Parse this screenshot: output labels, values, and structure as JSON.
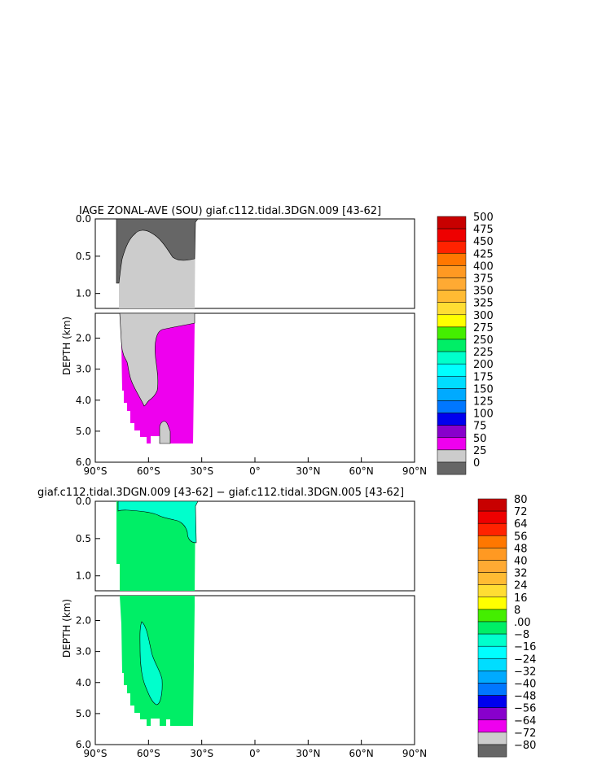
{
  "chart_data": [
    {
      "type": "heatmap",
      "title": "IAGE ZONAL-AVE (SOU) giaf.c112.tidal.3DGN.009 [43-62]",
      "ylabel": "DEPTH (km)",
      "x_ticks": [
        "90°S",
        "60°S",
        "30°S",
        "0°",
        "30°N",
        "60°N",
        "90°N"
      ],
      "upper_y_ticks": [
        "0.0",
        "0.5",
        "1.0"
      ],
      "lower_y_ticks": [
        "2.0",
        "3.0",
        "4.0",
        "5.0",
        "6.0"
      ],
      "xlim": [
        -90,
        90
      ],
      "ylim_upper_km": [
        0.0,
        1.2
      ],
      "ylim_lower_km": [
        1.2,
        6.0
      ],
      "colorbar_levels": [
        "500",
        "475",
        "450",
        "425",
        "400",
        "375",
        "350",
        "325",
        "300",
        "275",
        "250",
        "225",
        "200",
        "175",
        "150",
        "125",
        "100",
        "75",
        "50",
        "25",
        "0"
      ],
      "colorbar_colors": [
        "#c80000",
        "#ee0000",
        "#ff2200",
        "#ff7700",
        "#ff9922",
        "#ffaa33",
        "#ffbb33",
        "#ffdd33",
        "#ffff00",
        "#44ee00",
        "#00ee66",
        "#00ffcc",
        "#00ffff",
        "#00ddff",
        "#00aaff",
        "#0077ff",
        "#0000ee",
        "#8800cc",
        "#ee00ee",
        "#cccccc",
        "#666666"
      ]
    },
    {
      "type": "heatmap",
      "title": "giaf.c112.tidal.3DGN.009 [43-62] − giaf.c112.tidal.3DGN.005 [43-62]",
      "ylabel": "DEPTH (km)",
      "x_ticks": [
        "90°S",
        "60°S",
        "30°S",
        "0°",
        "30°N",
        "60°N",
        "90°N"
      ],
      "upper_y_ticks": [
        "0.0",
        "0.5",
        "1.0"
      ],
      "lower_y_ticks": [
        "2.0",
        "3.0",
        "4.0",
        "5.0",
        "6.0"
      ],
      "xlim": [
        -90,
        90
      ],
      "ylim_upper_km": [
        0.0,
        1.2
      ],
      "ylim_lower_km": [
        1.2,
        6.0
      ],
      "colorbar_levels": [
        "80",
        "72",
        "64",
        "56",
        "48",
        "40",
        "32",
        "24",
        "16",
        "8",
        ".00",
        "−8",
        "−16",
        "−24",
        "−32",
        "−40",
        "−48",
        "−56",
        "−64",
        "−72",
        "−80"
      ],
      "colorbar_colors": [
        "#c80000",
        "#ee0000",
        "#ff2200",
        "#ff7700",
        "#ff9922",
        "#ffaa33",
        "#ffbb33",
        "#ffdd33",
        "#ffff00",
        "#44ee00",
        "#00ee66",
        "#00ffcc",
        "#00ffff",
        "#00ddff",
        "#00aaff",
        "#0077ff",
        "#0000ee",
        "#8800cc",
        "#ee00ee",
        "#cccccc",
        "#666666"
      ]
    }
  ]
}
